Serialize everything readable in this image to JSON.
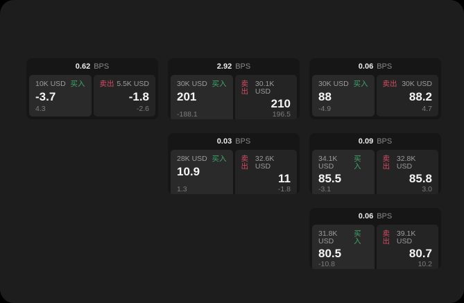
{
  "labels": {
    "unit": "BPS",
    "buy": "买入",
    "sell": "卖出"
  },
  "colors": {
    "buy": "#3ea56b",
    "sell": "#d24b63",
    "panel-bg": "#1d1d1d",
    "card-bg": "#161616"
  },
  "cards": [
    {
      "bps": "0.62",
      "buy": {
        "size": "10K USD",
        "price": "-3.7",
        "delta": "4.3"
      },
      "sell": {
        "size": "5.5K USD",
        "price": "-1.8",
        "delta": "-2.6"
      }
    },
    {
      "bps": "2.92",
      "buy": {
        "size": "30K USD",
        "price": "201",
        "delta": "-188.1"
      },
      "sell": {
        "size": "30.1K USD",
        "price": "210",
        "delta": "196.5"
      }
    },
    {
      "bps": "0.06",
      "buy": {
        "size": "30K USD",
        "price": "88",
        "delta": "-4.9"
      },
      "sell": {
        "size": "30K USD",
        "price": "88.2",
        "delta": "4.7"
      }
    },
    {
      "bps": "0.03",
      "buy": {
        "size": "28K USD",
        "price": "10.9",
        "delta": "1.3"
      },
      "sell": {
        "size": "32.6K USD",
        "price": "11",
        "delta": "-1.8"
      }
    },
    {
      "bps": "0.09",
      "buy": {
        "size": "34.1K USD",
        "price": "85.5",
        "delta": "-3.1"
      },
      "sell": {
        "size": "32.8K USD",
        "price": "85.8",
        "delta": "3.0"
      }
    },
    {
      "bps": "0.06",
      "buy": {
        "size": "31.8K USD",
        "price": "80.5",
        "delta": "-10.8"
      },
      "sell": {
        "size": "39.1K USD",
        "price": "80.7",
        "delta": "10.2"
      }
    }
  ]
}
